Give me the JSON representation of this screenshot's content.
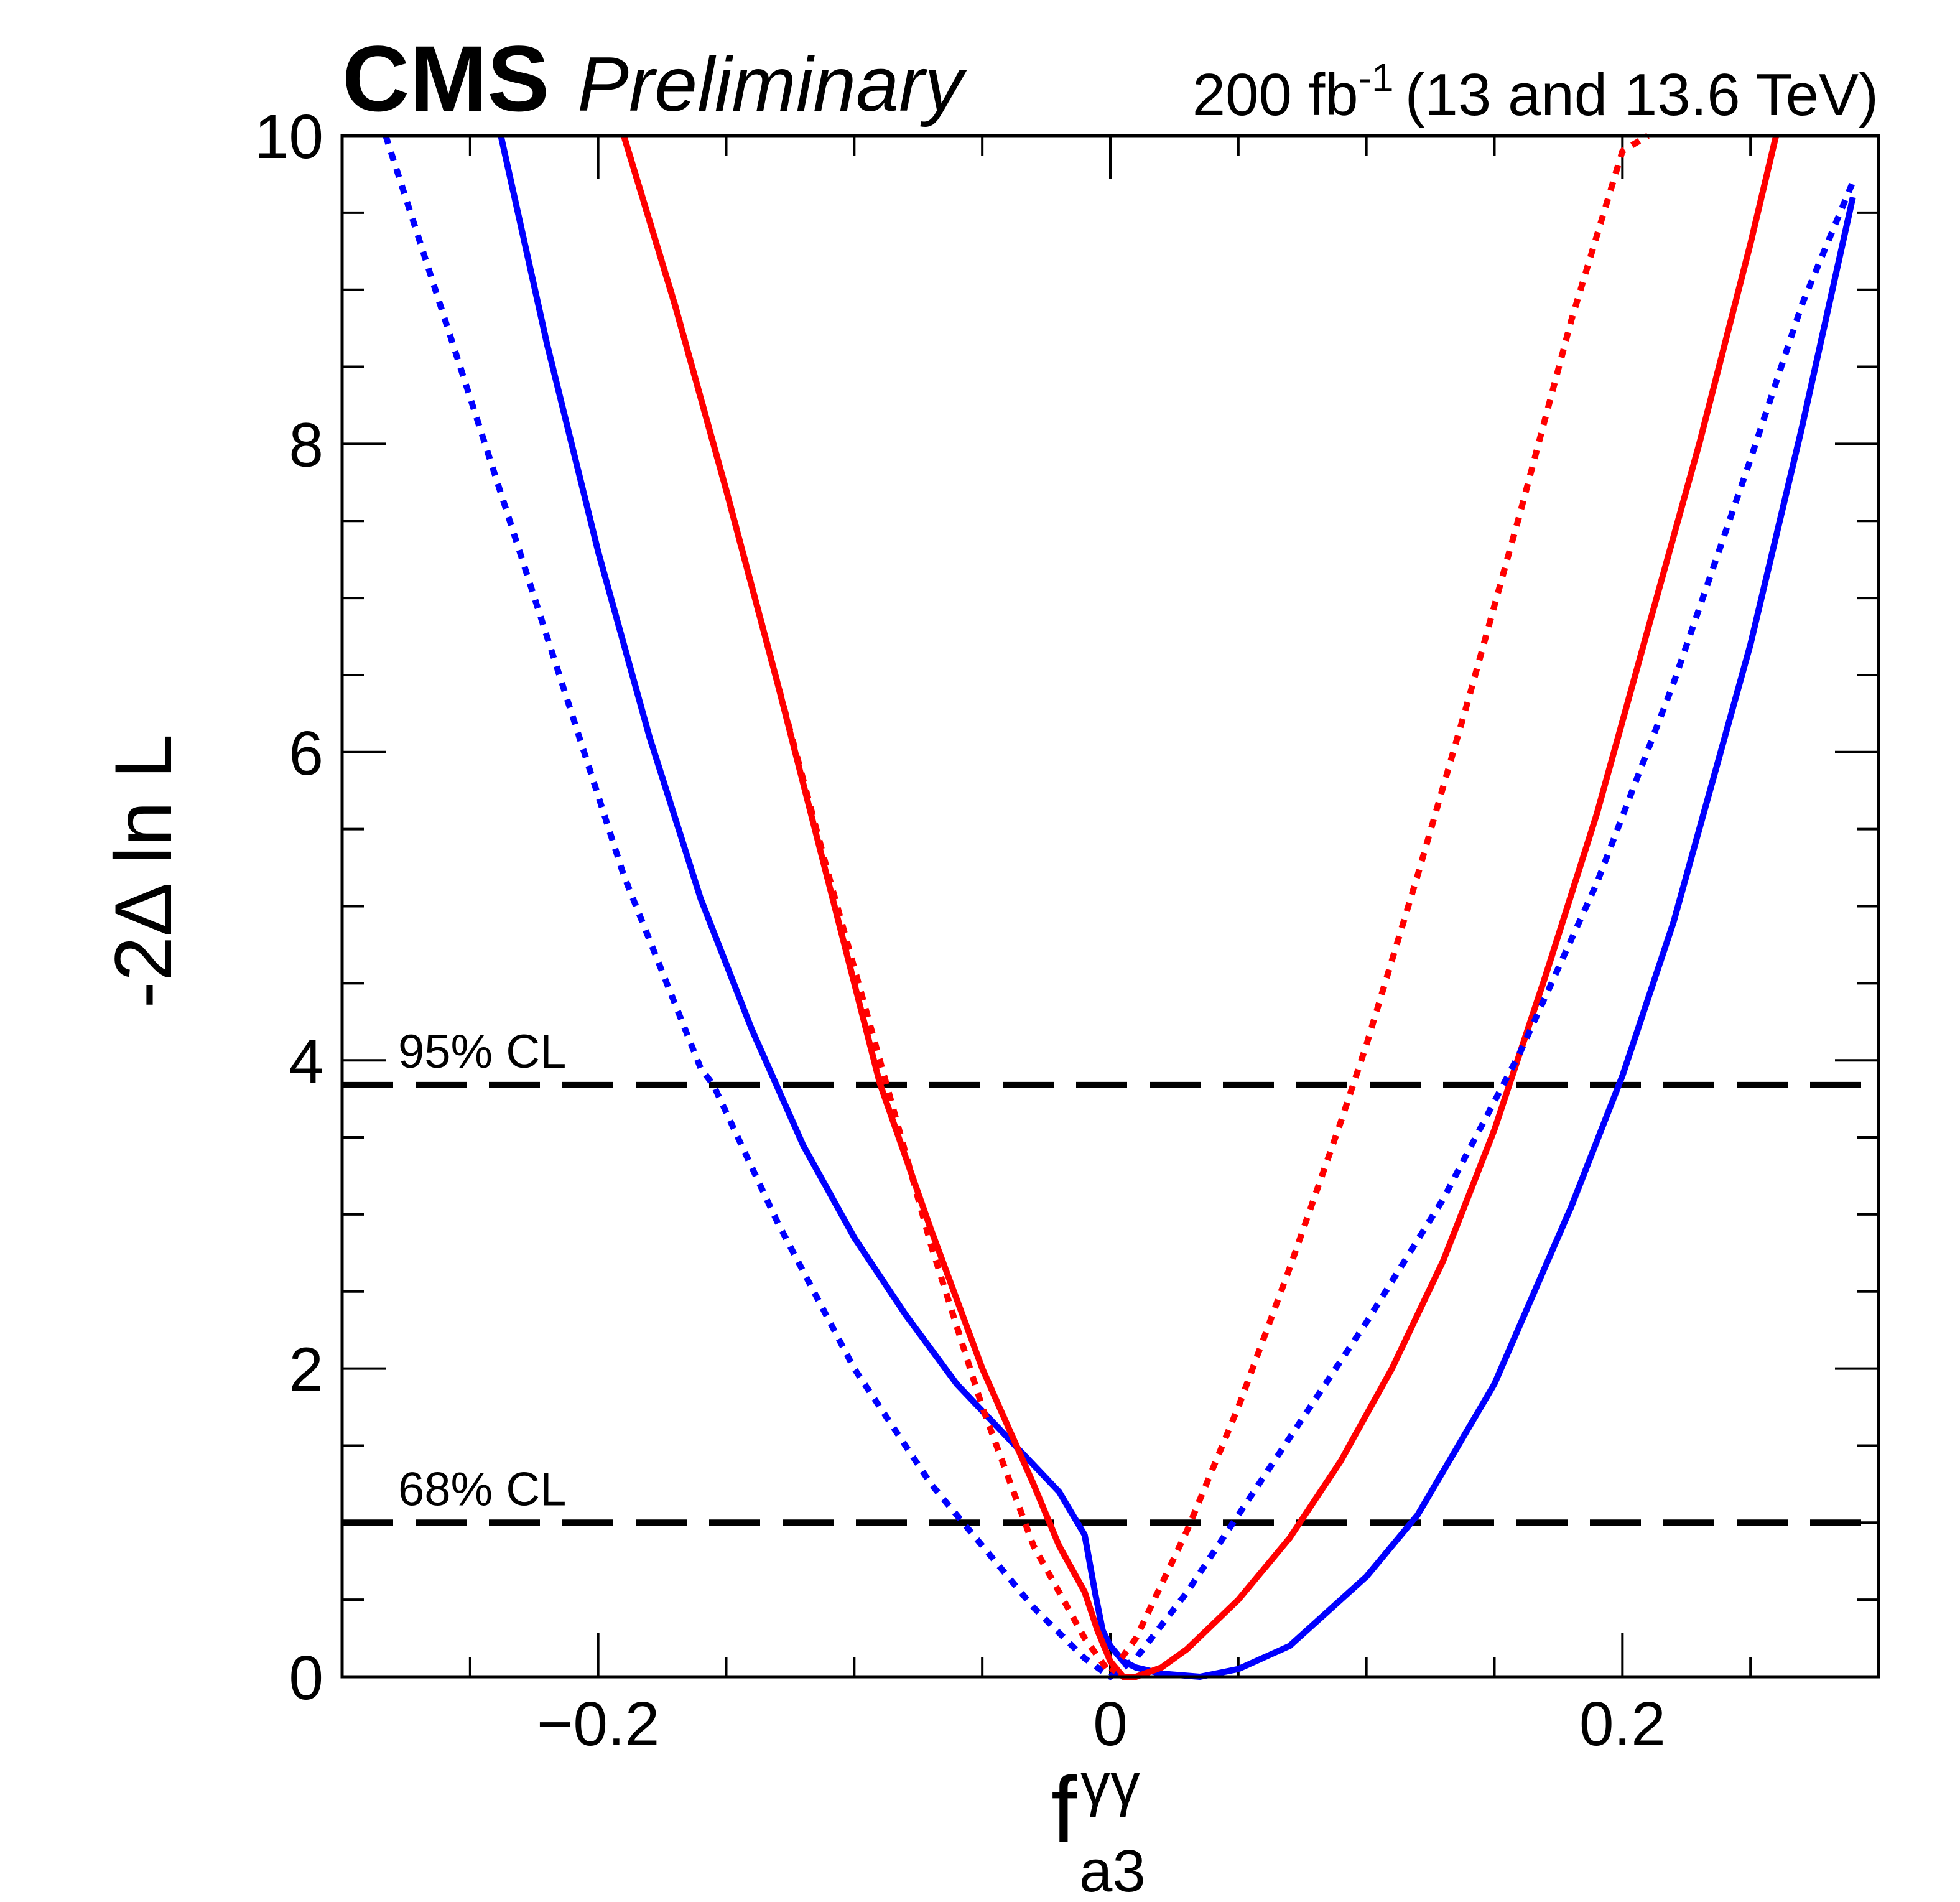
{
  "chart_data": {
    "type": "line",
    "experiment": "CMS",
    "status": "Preliminary",
    "lumi": {
      "value": "200 fb",
      "exponent": "-1",
      "energy": "(13 and 13.6 TeV)"
    },
    "xlabel": {
      "main": "f",
      "superscript": "γγ",
      "subscript": "a3"
    },
    "ylabel": "-2Δ ln L",
    "xlim": [
      -0.3,
      0.3
    ],
    "ylim": [
      0,
      10
    ],
    "xticks": [
      {
        "value": -0.2,
        "label": "−0.2"
      },
      {
        "value": 0,
        "label": "0"
      },
      {
        "value": 0.2,
        "label": "0.2"
      }
    ],
    "yticks": [
      {
        "value": 0,
        "label": "0"
      },
      {
        "value": 2,
        "label": "2"
      },
      {
        "value": 4,
        "label": "4"
      },
      {
        "value": 6,
        "label": "6"
      },
      {
        "value": 8,
        "label": "8"
      },
      {
        "value": 10,
        "label": "10"
      }
    ],
    "reference_lines": [
      {
        "y": 3.84,
        "label": "95% CL"
      },
      {
        "y": 1.0,
        "label": "68% CL"
      }
    ],
    "series": [
      {
        "name": "blue solid",
        "color": "#0000ff",
        "style": "solid",
        "x": [
          -0.238,
          -0.22,
          -0.2,
          -0.18,
          -0.16,
          -0.14,
          -0.12,
          -0.11,
          -0.1,
          -0.08,
          -0.06,
          -0.04,
          -0.02,
          -0.01,
          -0.006,
          -0.003,
          0.0,
          0.005,
          0.01,
          0.02,
          0.035,
          0.05,
          0.07,
          0.1,
          0.12,
          0.15,
          0.18,
          0.2,
          0.22,
          0.25,
          0.27,
          0.29
        ],
        "y": [
          10.0,
          8.65,
          7.3,
          6.1,
          5.05,
          4.2,
          3.45,
          3.15,
          2.85,
          2.35,
          1.9,
          1.55,
          1.2,
          0.92,
          0.55,
          0.3,
          0.2,
          0.1,
          0.06,
          0.02,
          0.0,
          0.05,
          0.2,
          0.65,
          1.05,
          1.9,
          3.05,
          3.9,
          4.9,
          6.7,
          8.1,
          9.6
        ]
      },
      {
        "name": "red solid",
        "color": "#ff0000",
        "style": "solid",
        "x": [
          -0.19,
          -0.17,
          -0.15,
          -0.13,
          -0.11,
          -0.09,
          -0.07,
          -0.05,
          -0.03,
          -0.02,
          -0.01,
          -0.005,
          0.0,
          0.005,
          0.01,
          0.02,
          0.03,
          0.05,
          0.07,
          0.09,
          0.11,
          0.13,
          0.15,
          0.17,
          0.19,
          0.21,
          0.23,
          0.25,
          0.26
        ],
        "y": [
          10.0,
          8.9,
          7.7,
          6.45,
          5.15,
          3.85,
          2.9,
          2.0,
          1.25,
          0.85,
          0.55,
          0.3,
          0.1,
          0.0,
          0.0,
          0.06,
          0.18,
          0.5,
          0.9,
          1.4,
          2.0,
          2.7,
          3.55,
          4.55,
          5.6,
          6.8,
          8.0,
          9.3,
          10.0
        ]
      },
      {
        "name": "blue dotted",
        "color": "#0000ff",
        "style": "dotted",
        "x": [
          -0.283,
          -0.25,
          -0.22,
          -0.19,
          -0.16,
          -0.155,
          -0.13,
          -0.1,
          -0.07,
          -0.05,
          -0.03,
          -0.01,
          0.0,
          0.01,
          0.03,
          0.05,
          0.07,
          0.1,
          0.13,
          0.16,
          0.19,
          0.22,
          0.25,
          0.27,
          0.29
        ],
        "y": [
          10.0,
          8.3,
          6.75,
          5.2,
          3.95,
          3.84,
          2.95,
          2.0,
          1.25,
          0.85,
          0.45,
          0.12,
          0.0,
          0.12,
          0.55,
          1.05,
          1.55,
          2.3,
          3.1,
          4.05,
          5.15,
          6.45,
          7.9,
          8.9,
          9.7
        ]
      },
      {
        "name": "red dotted",
        "color": "#ff0000",
        "style": "dotted",
        "x": [
          -0.19,
          -0.17,
          -0.15,
          -0.13,
          -0.11,
          -0.09,
          -0.07,
          -0.05,
          -0.03,
          -0.01,
          0.0,
          0.01,
          0.03,
          0.05,
          0.07,
          0.09,
          0.1,
          0.12,
          0.14,
          0.16,
          0.18,
          0.2,
          0.21
        ],
        "y": [
          10.0,
          8.9,
          7.7,
          6.45,
          5.2,
          4.0,
          2.8,
          1.75,
          0.85,
          0.25,
          0.02,
          0.25,
          0.95,
          1.75,
          2.65,
          3.6,
          4.1,
          5.2,
          6.35,
          7.55,
          8.8,
          9.9,
          10.0
        ]
      }
    ]
  }
}
